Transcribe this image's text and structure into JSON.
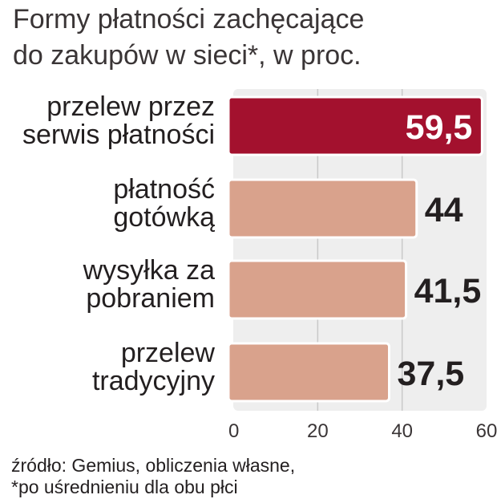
{
  "chart_data": {
    "type": "bar",
    "orientation": "horizontal",
    "title_lines": [
      "Formy płatności zachęcające",
      "do zakupów w sieci*, w proc."
    ],
    "categories": [
      [
        "przelew przez",
        "serwis płatności"
      ],
      [
        "płatność",
        "gotówką"
      ],
      [
        "wysyłka za",
        "pobraniem"
      ],
      [
        "przelew",
        "tradycyjny"
      ]
    ],
    "values": [
      59.5,
      44,
      41.5,
      37.5
    ],
    "value_labels": [
      "59,5",
      "44",
      "41,5",
      "37,5"
    ],
    "xlim": [
      0,
      60
    ],
    "x_ticks": [
      0,
      20,
      40,
      60
    ],
    "grid": true,
    "highlight_index": 0,
    "source_lines": [
      "źródło: Gemius, obliczenia własne,",
      "*po uśrednieniu dla obu płci"
    ]
  },
  "colors": {
    "highlight_bar": "#a3112e",
    "bar": "#d9a28c",
    "panel": "#eeeeee",
    "text": "#231f20",
    "value_on_bar": "#ffffff"
  }
}
